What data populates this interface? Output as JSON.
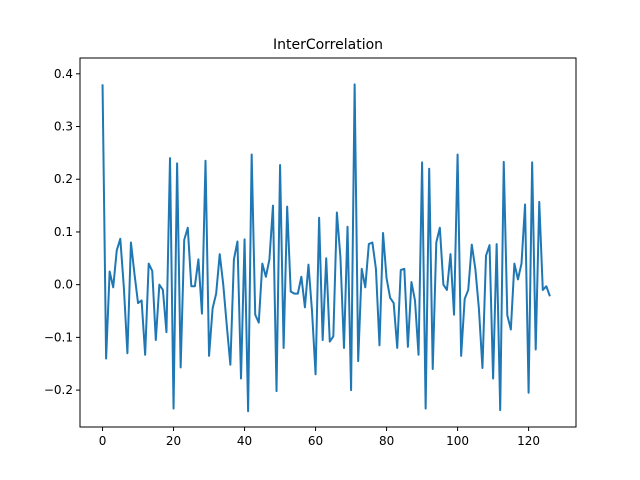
{
  "chart_data": {
    "type": "line",
    "title": "InterCorrelation",
    "xlabel": "",
    "ylabel": "",
    "xlim": [
      -6.35,
      133.35
    ],
    "ylim": [
      -0.27,
      0.43
    ],
    "xticks": [
      0,
      20,
      40,
      60,
      80,
      100,
      120
    ],
    "yticks": [
      -0.2,
      -0.1,
      0.0,
      0.1,
      0.2,
      0.3,
      0.4
    ],
    "xtick_labels": [
      "0",
      "20",
      "40",
      "60",
      "80",
      "100",
      "120"
    ],
    "ytick_labels": [
      "−0.2",
      "−0.1",
      "0.0",
      "0.1",
      "0.2",
      "0.3",
      "0.4"
    ],
    "grid": false,
    "line_color": "#1f77b4",
    "series": [
      {
        "x": [
          0,
          1,
          2,
          3,
          4,
          5,
          6,
          7,
          8,
          9,
          10,
          11,
          12,
          13,
          14,
          15,
          16,
          17,
          18,
          19,
          20,
          21,
          22,
          23,
          24,
          25,
          26,
          27,
          28,
          29,
          30,
          31,
          32,
          33,
          34,
          35,
          36,
          37,
          38,
          39,
          40,
          41,
          42,
          43,
          44,
          45,
          46,
          47,
          48,
          49,
          50,
          51,
          52,
          53,
          54,
          55,
          56,
          57,
          58,
          59,
          60,
          61,
          62,
          63,
          64,
          65,
          66,
          67,
          68,
          69,
          70,
          71,
          72,
          73,
          74,
          75,
          76,
          77,
          78,
          79,
          80,
          81,
          82,
          83,
          84,
          85,
          86,
          87,
          88,
          89,
          90,
          91,
          92,
          93,
          94,
          95,
          96,
          97,
          98,
          99,
          100,
          101,
          102,
          103,
          104,
          105,
          106,
          107,
          108,
          109,
          110,
          111,
          112,
          113,
          114,
          115,
          116,
          117,
          118,
          119,
          120,
          121,
          122,
          123,
          124,
          125,
          126
        ],
        "values": [
          0.38,
          -0.14,
          0.025,
          -0.005,
          0.065,
          0.087,
          -0.005,
          -0.13,
          0.08,
          0.02,
          -0.035,
          -0.03,
          -0.133,
          0.04,
          0.026,
          -0.105,
          0.0,
          -0.01,
          -0.09,
          0.24,
          -0.235,
          0.23,
          -0.157,
          0.085,
          0.108,
          -0.003,
          -0.003,
          0.048,
          -0.055,
          0.235,
          -0.135,
          -0.045,
          -0.017,
          0.058,
          0.0,
          -0.078,
          -0.152,
          0.048,
          0.082,
          -0.178,
          0.086,
          -0.24,
          0.247,
          -0.057,
          -0.072,
          0.04,
          0.015,
          0.048,
          0.15,
          -0.202,
          0.227,
          -0.12,
          0.148,
          -0.013,
          -0.017,
          -0.017,
          0.015,
          -0.043,
          0.038,
          -0.05,
          -0.17,
          0.127,
          -0.105,
          0.05,
          -0.108,
          -0.098,
          0.137,
          0.052,
          -0.12,
          0.11,
          -0.2,
          0.38,
          -0.145,
          0.03,
          -0.005,
          0.077,
          0.08,
          0.03,
          -0.115,
          0.098,
          0.012,
          -0.025,
          -0.035,
          -0.12,
          0.028,
          0.03,
          -0.118,
          0.005,
          -0.03,
          -0.133,
          0.232,
          -0.235,
          0.22,
          -0.16,
          0.08,
          0.108,
          0.0,
          -0.01,
          0.058,
          -0.057,
          0.247,
          -0.135,
          -0.027,
          -0.01,
          0.076,
          0.03,
          -0.045,
          -0.158,
          0.055,
          0.075,
          -0.178,
          0.077,
          -0.238,
          0.233,
          -0.058,
          -0.085,
          0.04,
          0.01,
          0.04,
          0.152,
          -0.205,
          0.232,
          -0.123,
          0.157,
          -0.01,
          -0.003,
          -0.022
        ]
      }
    ]
  }
}
